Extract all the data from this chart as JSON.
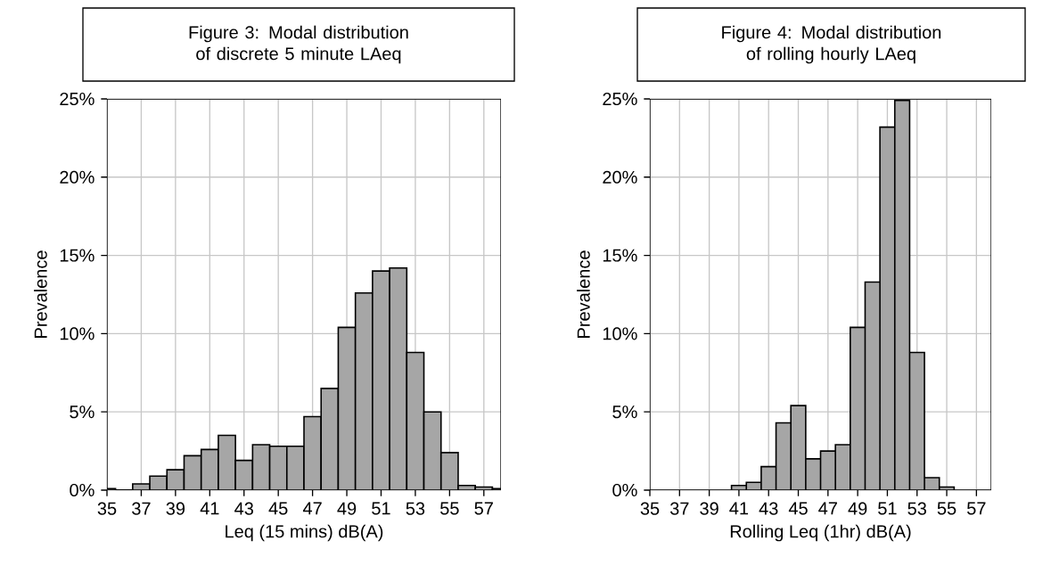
{
  "chart_data": [
    {
      "type": "bar",
      "title": "Figure 3: Modal distribution of discrete 5 minute LAeq",
      "xlabel": "Leq (15 mins) dB(A)",
      "ylabel": "Prevalence",
      "x": [
        35,
        36,
        37,
        38,
        39,
        40,
        41,
        42,
        43,
        44,
        45,
        46,
        47,
        48,
        49,
        50,
        51,
        52,
        53,
        54,
        55,
        56,
        57,
        58
      ],
      "series": [
        {
          "color": "#a6a6a6",
          "values": [
            0.1,
            0,
            0.4,
            0.9,
            1.3,
            2.2,
            2.6,
            3.5,
            1.9,
            2.9,
            2.8,
            2.8,
            4.7,
            6.5,
            10.4,
            12.6,
            14.0,
            14.2,
            8.8,
            5.0,
            2.4,
            0.3,
            0.2,
            0.1
          ]
        }
      ],
      "xlim": [
        35,
        58
      ],
      "xticks": [
        35,
        37,
        39,
        41,
        43,
        45,
        47,
        49,
        51,
        53,
        55,
        57
      ],
      "ylim": [
        0,
        25
      ],
      "yticks": [
        {
          "value": 0,
          "label": "0%"
        },
        {
          "value": 5,
          "label": "5%"
        },
        {
          "value": 10,
          "label": "10%"
        },
        {
          "value": 15,
          "label": "15%"
        },
        {
          "value": 20,
          "label": "20%"
        },
        {
          "value": 25,
          "label": "25%"
        }
      ],
      "grid": true
    },
    {
      "type": "bar",
      "title": "Figure 4: Modal distribution of rolling hourly LAeq",
      "xlabel": "Rolling Leq (1hr) dB(A)",
      "ylabel": "Prevalence",
      "x": [
        41,
        42,
        43,
        44,
        45,
        46,
        47,
        48,
        49,
        50,
        51,
        52,
        53,
        54,
        55
      ],
      "series": [
        {
          "color": "#a6a6a6",
          "values": [
            0.3,
            0.5,
            1.5,
            4.3,
            5.4,
            2.0,
            2.5,
            2.9,
            10.4,
            13.3,
            23.2,
            24.9,
            8.8,
            0.8,
            0.2
          ]
        }
      ],
      "xlim": [
        35,
        58
      ],
      "xticks": [
        35,
        37,
        39,
        41,
        43,
        45,
        47,
        49,
        51,
        53,
        55,
        57
      ],
      "ylim": [
        0,
        25
      ],
      "yticks": [
        {
          "value": 0,
          "label": "0%"
        },
        {
          "value": 5,
          "label": "5%"
        },
        {
          "value": 10,
          "label": "10%"
        },
        {
          "value": 15,
          "label": "15%"
        },
        {
          "value": 20,
          "label": "20%"
        },
        {
          "value": 25,
          "label": "25%"
        }
      ],
      "grid": true
    }
  ]
}
